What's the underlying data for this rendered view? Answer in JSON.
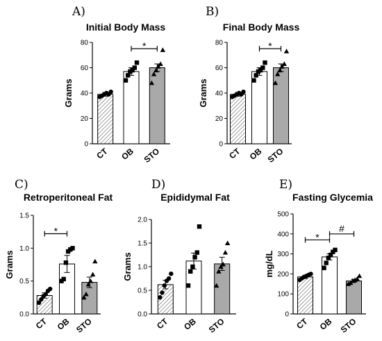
{
  "chart_data": [
    {
      "type": "bar",
      "panel_label": "A)",
      "title": "Initial Body Mass",
      "ylabel": "Grams",
      "xlabel": "",
      "categories": [
        "CT",
        "OB",
        "STO"
      ],
      "fills": [
        "hatched",
        "white",
        "gray"
      ],
      "markers": [
        "circle",
        "square",
        "triangle"
      ],
      "ylim": [
        0,
        80
      ],
      "yticks": [
        "0",
        "20",
        "40",
        "60",
        "80"
      ],
      "values": [
        39,
        57,
        60
      ],
      "errors": [
        1.5,
        3.0,
        3.0
      ],
      "points": [
        [
          37,
          38,
          39,
          40,
          39,
          41
        ],
        [
          50,
          54,
          57,
          58,
          60,
          64
        ],
        [
          48,
          55,
          58,
          61,
          63,
          74
        ]
      ],
      "annotations": [
        {
          "from": 1,
          "to": 2,
          "level": 75,
          "label": "*"
        }
      ]
    },
    {
      "type": "bar",
      "panel_label": "B)",
      "title": "Final Body Mass",
      "ylabel": "Grams",
      "xlabel": "",
      "categories": [
        "CT",
        "OB",
        "STO"
      ],
      "fills": [
        "hatched",
        "white",
        "gray"
      ],
      "markers": [
        "circle",
        "square",
        "triangle"
      ],
      "ylim": [
        0,
        80
      ],
      "yticks": [
        "0",
        "20",
        "40",
        "60",
        "80"
      ],
      "values": [
        39,
        57,
        60
      ],
      "errors": [
        1.5,
        3.0,
        3.0
      ],
      "points": [
        [
          37,
          38,
          39,
          40,
          39,
          41
        ],
        [
          50,
          54,
          57,
          58,
          60,
          64
        ],
        [
          48,
          55,
          58,
          61,
          63,
          73
        ]
      ],
      "annotations": [
        {
          "from": 1,
          "to": 2,
          "level": 75,
          "label": "*"
        }
      ]
    },
    {
      "type": "bar",
      "panel_label": "C)",
      "title": "Retroperitoneal Fat",
      "ylabel": "Grams",
      "xlabel": "",
      "categories": [
        "CT",
        "OB",
        "STO"
      ],
      "fills": [
        "hatched",
        "white",
        "gray"
      ],
      "markers": [
        "circle",
        "square",
        "triangle"
      ],
      "ylim": [
        0,
        1.5
      ],
      "yticks": [
        "0.0",
        "0.5",
        "1.0",
        "1.5"
      ],
      "values": [
        0.28,
        0.76,
        0.48
      ],
      "errors": [
        0.04,
        0.13,
        0.08
      ],
      "points": [
        [
          0.17,
          0.22,
          0.27,
          0.3,
          0.35,
          0.38
        ],
        [
          0.5,
          0.53,
          0.78,
          0.95,
          0.98,
          1.0
        ],
        [
          0.25,
          0.3,
          0.45,
          0.5,
          0.6,
          0.8
        ]
      ],
      "annotations": [
        {
          "from": 0,
          "to": 1,
          "level": 1.22,
          "label": "*"
        }
      ]
    },
    {
      "type": "bar",
      "panel_label": "D)",
      "title": "Epididymal Fat",
      "ylabel": "Grams",
      "xlabel": "",
      "categories": [
        "CT",
        "OB",
        "STO"
      ],
      "fills": [
        "hatched",
        "white",
        "gray"
      ],
      "markers": [
        "circle",
        "square",
        "triangle"
      ],
      "ylim": [
        0,
        2.0
      ],
      "yticks": [
        "0.0",
        "0.5",
        "1.0",
        "1.5",
        "2.0"
      ],
      "values": [
        0.62,
        1.12,
        1.06
      ],
      "errors": [
        0.09,
        0.17,
        0.14
      ],
      "points": [
        [
          0.35,
          0.45,
          0.6,
          0.7,
          0.75,
          0.85
        ],
        [
          0.6,
          0.9,
          1.0,
          1.2,
          1.3,
          1.85
        ],
        [
          0.6,
          0.9,
          1.0,
          1.05,
          1.3,
          1.5
        ]
      ],
      "annotations": []
    },
    {
      "type": "bar",
      "panel_label": "E)",
      "title": "Fasting Glycemia",
      "ylabel": "mg/dL",
      "xlabel": "",
      "categories": [
        "CT",
        "OB",
        "STO"
      ],
      "fills": [
        "hatched",
        "white",
        "gray"
      ],
      "markers": [
        "circle",
        "square",
        "triangle"
      ],
      "ylim": [
        0,
        500
      ],
      "yticks": [
        "0",
        "100",
        "200",
        "300",
        "400",
        "500"
      ],
      "values": [
        185,
        285,
        165
      ],
      "errors": [
        8,
        15,
        8
      ],
      "points": [
        [
          170,
          178,
          185,
          190,
          195,
          200
        ],
        [
          230,
          255,
          280,
          295,
          310,
          320
        ],
        [
          150,
          155,
          165,
          170,
          175,
          190
        ]
      ],
      "annotations": [
        {
          "from": 0,
          "to": 1,
          "level": 370,
          "label": "*"
        },
        {
          "from": 1,
          "to": 2,
          "level": 400,
          "label": "#"
        }
      ]
    }
  ]
}
